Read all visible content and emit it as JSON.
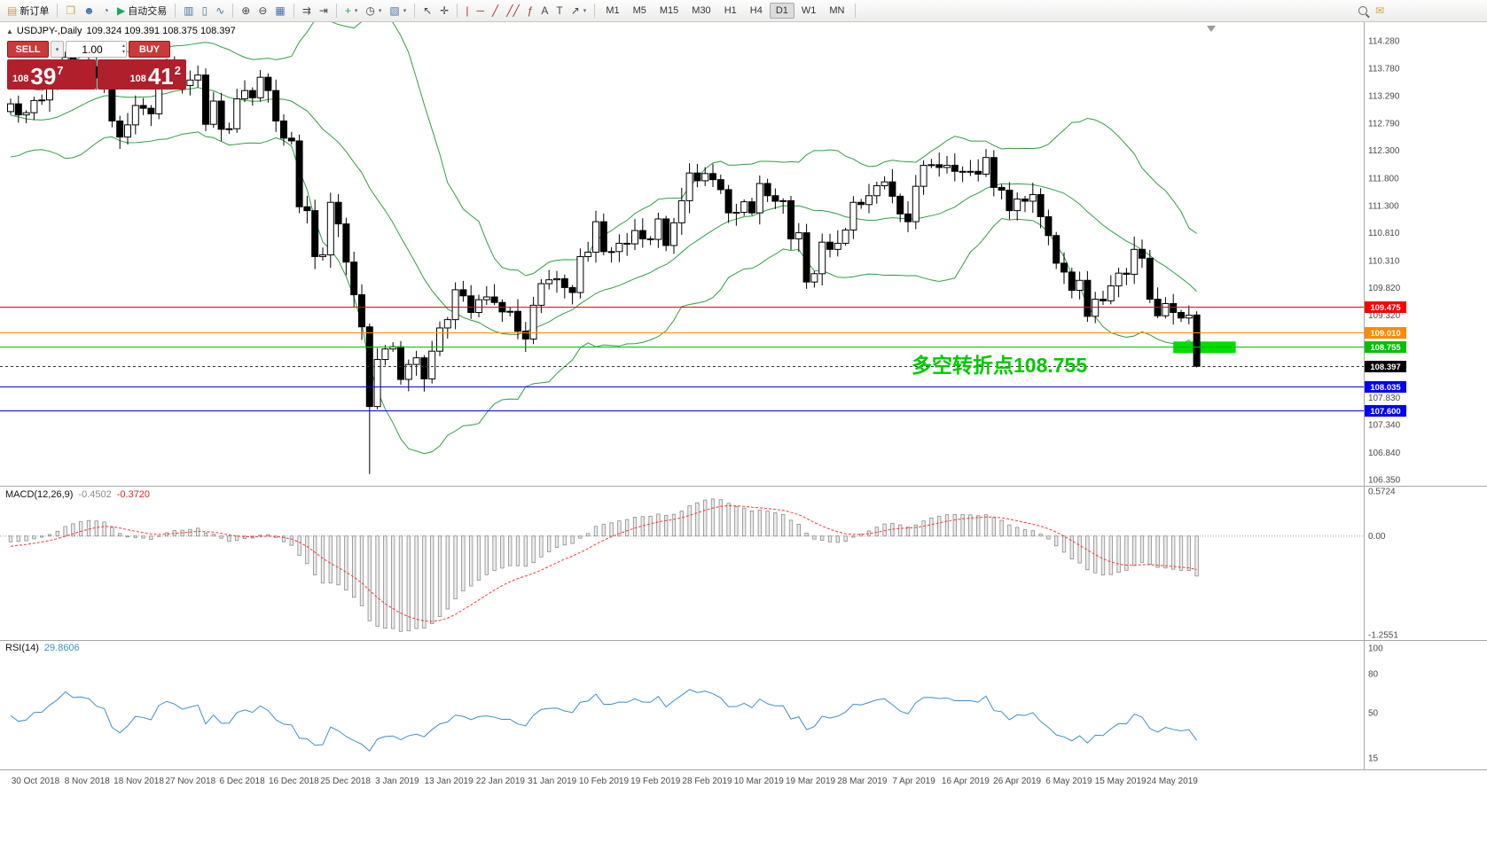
{
  "toolbar": {
    "dropdown_glyph": "▾",
    "groups": [
      {
        "name": "order-group",
        "items": [
          {
            "name": "new-order-button",
            "glyph": "▤",
            "glyph_color": "#c9a23d",
            "label": "新订单"
          }
        ]
      },
      {
        "name": "panels-group",
        "items": [
          {
            "name": "new-chart-icon",
            "glyph": "❐",
            "glyph_color": "#caa53d"
          },
          {
            "name": "profiles-icon",
            "glyph": "☻",
            "glyph_color": "#4a6fa5"
          },
          {
            "name": "history-center-icon",
            "glyph": "◔",
            "glyph_color": "#4a6fa5"
          },
          {
            "name": "autotrading-button",
            "glyph": "▶",
            "glyph_color": "#18a957",
            "label": "自动交易"
          }
        ]
      },
      {
        "name": "chart-type-group",
        "items": [
          {
            "name": "bar-chart-button",
            "glyph": "▥",
            "glyph_color": "#4a6fa5"
          },
          {
            "name": "candlestick-chart-button",
            "glyph": "▯",
            "glyph_color": "#4a6fa5"
          },
          {
            "name": "line-chart-button",
            "glyph": "∿",
            "glyph_color": "#4a6fa5"
          }
        ]
      },
      {
        "name": "zoom-group",
        "items": [
          {
            "name": "zoom-in-button",
            "glyph": "⊕",
            "glyph_color": "#444444"
          },
          {
            "name": "zoom-out-button",
            "glyph": "⊖",
            "glyph_color": "#444444"
          },
          {
            "name": "tile-windows-button",
            "glyph": "▦",
            "glyph_color": "#4a6fa5"
          }
        ]
      },
      {
        "name": "scroll-group",
        "items": [
          {
            "name": "auto-scroll-button",
            "glyph": "⇉",
            "glyph_color": "#444444"
          },
          {
            "name": "chart-shift-button",
            "glyph": "⇥",
            "glyph_color": "#444444"
          }
        ]
      },
      {
        "name": "insert-group",
        "items": [
          {
            "name": "indicators-button",
            "glyph": "+",
            "glyph_color": "#18a957",
            "dropdown": true
          },
          {
            "name": "periods-button",
            "glyph": "◷",
            "glyph_color": "#444444",
            "dropdown": true
          },
          {
            "name": "templates-button",
            "glyph": "▧",
            "glyph_color": "#4a6fa5",
            "dropdown": true
          }
        ]
      },
      {
        "name": "cursor-group",
        "items": [
          {
            "name": "cursor-button",
            "glyph": "↖",
            "glyph_color": "#444444"
          },
          {
            "name": "crosshair-button",
            "glyph": "✛",
            "glyph_color": "#444444"
          }
        ]
      },
      {
        "name": "objects-group",
        "items": [
          {
            "name": "vertical-line-button",
            "glyph": "|",
            "glyph_color": "#b03030"
          },
          {
            "name": "horizontal-line-button",
            "glyph": "─",
            "glyph_color": "#b03030"
          },
          {
            "name": "trendline-button",
            "glyph": "╱",
            "glyph_color": "#b03030"
          },
          {
            "name": "channel-button",
            "glyph": "╱╱",
            "glyph_color": "#b03030"
          },
          {
            "name": "fibonacci-button",
            "glyph": "ƒ",
            "glyph_color": "#b03030"
          },
          {
            "name": "text-button",
            "glyph": "A",
            "glyph_color": "#444444"
          },
          {
            "name": "label-button",
            "glyph": "T",
            "glyph_color": "#444444"
          },
          {
            "name": "shapes-button",
            "glyph": "↗",
            "glyph_color": "#444444",
            "dropdown": true
          }
        ]
      },
      {
        "name": "timeframe-group",
        "timeframes": [
          "M1",
          "M5",
          "M15",
          "M30",
          "H1",
          "H4",
          "D1",
          "W1",
          "MN"
        ],
        "active": "D1"
      },
      {
        "name": "right-group",
        "align": "right",
        "items": [
          {
            "name": "search-button",
            "css_icon": "magnifier"
          },
          {
            "name": "chat-button",
            "glyph": "✉",
            "glyph_color": "#caa53d"
          }
        ]
      }
    ]
  },
  "chart_header": {
    "collapse_icon": "▲",
    "symbol": "USDJPY-,Daily",
    "ohlc": "109.324 109.391 108.375 108.397"
  },
  "trade_panel": {
    "sell_label": "SELL",
    "buy_label": "BUY",
    "volume": "1.00",
    "dropdown_icon": "▾",
    "spinner_up": "▴",
    "spinner_down": "▾",
    "sell_price": {
      "prefix": "108",
      "big": "39",
      "sup": "7"
    },
    "buy_price": {
      "prefix": "108",
      "big": "41",
      "sup": "2"
    },
    "panel_color": "#b01f2c",
    "button_color": "#c93a3a"
  },
  "annotation": {
    "text": "多空转折点108.755",
    "color": "#00c800"
  },
  "macd_header": {
    "title": "MACD(12,26,9)",
    "value_main": "-0.4502",
    "value_signal": "-0.3720"
  },
  "rsi_header": {
    "title": "RSI(14)",
    "value": "29.8606"
  },
  "chart_data": {
    "type": "candlestick",
    "symbol": "USDJPY-",
    "timeframe": "Daily",
    "ohlc_header": {
      "open": 109.324,
      "high": 109.391,
      "low": 108.375,
      "close": 108.397
    },
    "ylim": [
      106.238,
      114.616
    ],
    "y_axis_labels": [
      "114.280",
      "113.780",
      "113.290",
      "112.790",
      "112.300",
      "111.800",
      "111.300",
      "110.810",
      "110.310",
      "109.820",
      "109.320",
      "107.830",
      "107.340",
      "106.840",
      "106.350"
    ],
    "x_axis_labels": [
      "30 Oct 2018",
      "8 Nov 2018",
      "18 Nov 2018",
      "27 Nov 2018",
      "6 Dec 2018",
      "16 Dec 2018",
      "25 Dec 2018",
      "3 Jan 2019",
      "13 Jan 2019",
      "22 Jan 2019",
      "31 Jan 2019",
      "10 Feb 2019",
      "19 Feb 2019",
      "28 Feb 2019",
      "10 Mar 2019",
      "19 Mar 2019",
      "28 Mar 2019",
      "7 Apr 2019",
      "16 Apr 2019",
      "26 Apr 2019",
      "6 May 2019",
      "15 May 2019",
      "24 May 2019"
    ],
    "closes_pre": [
      113.4,
      113.55,
      113.7,
      113.5,
      113.3,
      113.1,
      112.9,
      112.7,
      112.5,
      112.4,
      112.3,
      112.45,
      112.6,
      112.75,
      112.9,
      113.0,
      113.1,
      112.95,
      112.85,
      113.0
    ],
    "closes": [
      113.14,
      112.94,
      112.98,
      113.2,
      113.21,
      113.43,
      113.63,
      113.98,
      113.83,
      113.85,
      113.81,
      113.61,
      113.54,
      112.83,
      112.54,
      112.76,
      113.11,
      113.06,
      112.96,
      113.57,
      113.78,
      113.68,
      113.47,
      113.57,
      113.66,
      112.77,
      113.19,
      112.68,
      112.69,
      113.23,
      113.38,
      113.25,
      113.62,
      113.38,
      112.83,
      112.52,
      112.47,
      111.28,
      111.21,
      110.38,
      110.41,
      111.36,
      110.97,
      110.28,
      109.69,
      109.11,
      107.67,
      108.52,
      108.71,
      108.75,
      108.16,
      108.43,
      108.55,
      108.17,
      108.67,
      109.09,
      109.24,
      109.78,
      109.67,
      109.37,
      109.6,
      109.65,
      109.55,
      109.38,
      109.39,
      109.03,
      108.89,
      109.5,
      109.89,
      109.96,
      109.98,
      109.82,
      109.73,
      110.38,
      110.46,
      111.01,
      110.47,
      110.47,
      110.62,
      110.61,
      110.85,
      110.7,
      110.69,
      111.06,
      110.58,
      110.99,
      111.39,
      111.89,
      111.75,
      111.88,
      111.77,
      111.59,
      111.17,
      111.18,
      111.37,
      111.17,
      111.7,
      111.48,
      111.38,
      111.39,
      110.7,
      110.81,
      109.92,
      110.07,
      110.64,
      110.51,
      110.62,
      110.86,
      111.36,
      111.32,
      111.48,
      111.66,
      111.73,
      111.47,
      111.15,
      111.01,
      111.65,
      112.03,
      112.04,
      111.99,
      112.03,
      111.92,
      111.92,
      111.92,
      111.87,
      112.17,
      111.63,
      111.58,
      111.21,
      111.42,
      111.38,
      111.5,
      111.1,
      110.76,
      110.26,
      110.1,
      109.77,
      109.95,
      109.3,
      109.61,
      109.58,
      109.85,
      110.08,
      110.06,
      110.51,
      110.35,
      109.61,
      109.31,
      109.53,
      109.37,
      109.27,
      109.32,
      108.4
    ],
    "flash_crash": {
      "index": 46,
      "low": 106.45
    },
    "bollinger": {
      "period": 20,
      "deviation": 2
    },
    "colors": {
      "bull": "#ffffff",
      "bear": "#000000",
      "bands": "#2f9e44",
      "grid": "#a8a8a8",
      "axis_text": "#4a4a4a"
    },
    "objects": {
      "levels": [
        {
          "price": 109.475,
          "label": "109.475",
          "color": "#ff0000"
        },
        {
          "price": 109.01,
          "label": "109.010",
          "color": "#ff8a00"
        },
        {
          "price": 108.755,
          "label": "108.755",
          "color": "#00c000"
        },
        {
          "price": 108.035,
          "label": "108.035",
          "color": "#0000ff"
        },
        {
          "price": 107.6,
          "label": "107.600",
          "color": "#0000ff"
        }
      ],
      "current_price": {
        "value": 108.397,
        "label": "108.397",
        "tag_color": "#000000"
      },
      "highlight_rect": {
        "start_index": 149,
        "end_index": 157,
        "price_top": 108.845,
        "price_bottom": 108.635,
        "color": "#00dd00"
      }
    },
    "indicators": {
      "macd": {
        "fast": 12,
        "slow": 26,
        "signal": 9,
        "scale": [
          {
            "label": "0.5724",
            "value": 0.5724
          },
          {
            "label": "0.00",
            "value": 0
          },
          {
            "label": "-1.2551",
            "value": -1.2551
          }
        ],
        "histogram_color": "#ececec",
        "histogram_stroke": "#858585",
        "signal_color": "#ff3333"
      },
      "rsi": {
        "period": 14,
        "scale": [
          {
            "label": "100",
            "value": 100
          },
          {
            "label": "80",
            "value": 80
          },
          {
            "label": "50",
            "value": 50
          },
          {
            "label": "15",
            "value": 15
          }
        ],
        "range": [
          8,
          104
        ],
        "color": "#3e8ed0"
      }
    }
  }
}
